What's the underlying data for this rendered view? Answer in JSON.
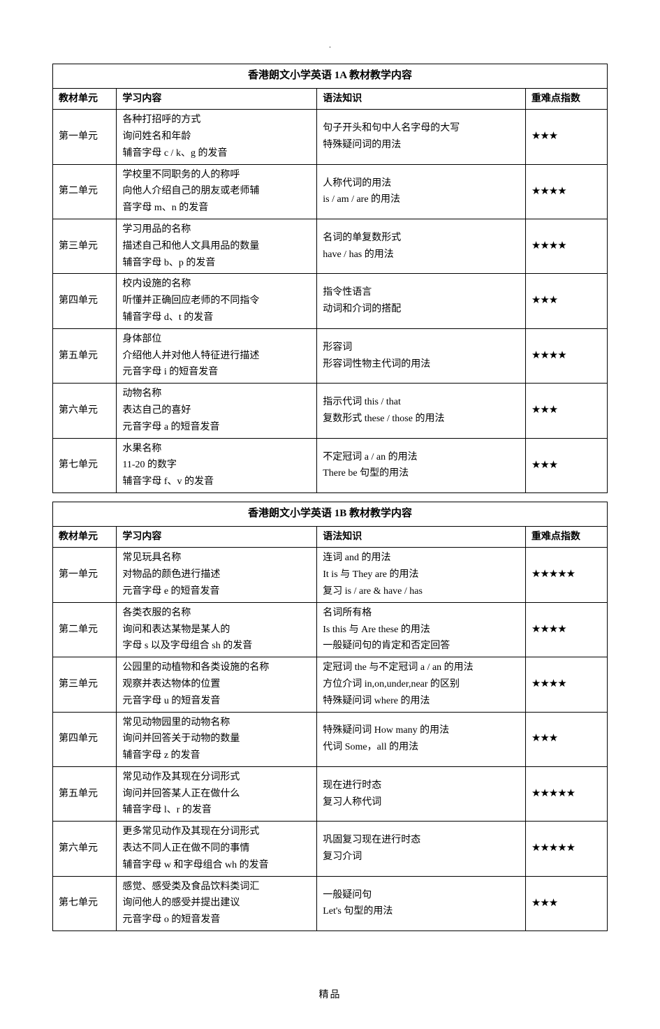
{
  "dot": ".",
  "footer": "精品",
  "tables": [
    {
      "title": "香港朗文小学英语 1A 教材教学内容",
      "headers": [
        "教材单元",
        "学习内容",
        "语法知识",
        "重难点指数"
      ],
      "rows": [
        {
          "unit": "第一单元",
          "content": [
            "各种打招呼的方式",
            "询问姓名和年龄",
            "辅音字母 c / k、g 的发音"
          ],
          "grammar": [
            "句子开头和句中人名字母的大写",
            "特殊疑问词的用法"
          ],
          "diff": "★★★"
        },
        {
          "unit": "第二单元",
          "content": [
            "学校里不同职务的人的称呼",
            "向他人介绍自己的朋友或老师辅",
            "音字母 m、n 的发音"
          ],
          "grammar": [
            "人称代词的用法",
            "is / am / are 的用法"
          ],
          "diff": "★★★★"
        },
        {
          "unit": "第三单元",
          "content": [
            "学习用品的名称",
            "描述自己和他人文具用品的数量",
            "辅音字母 b、p 的发音"
          ],
          "grammar": [
            "名词的单复数形式",
            "have / has 的用法"
          ],
          "diff": "★★★★"
        },
        {
          "unit": "第四单元",
          "content": [
            "校内设施的名称",
            "听懂并正确回应老师的不同指令",
            "辅音字母 d、t 的发音"
          ],
          "grammar": [
            "指令性语言",
            "动词和介词的搭配"
          ],
          "diff": "★★★"
        },
        {
          "unit": "第五单元",
          "content": [
            "身体部位",
            "介绍他人并对他人特征进行描述",
            "元音字母 i 的短音发音"
          ],
          "grammar": [
            "形容词",
            "形容词性物主代词的用法"
          ],
          "diff": "★★★★"
        },
        {
          "unit": "第六单元",
          "content": [
            "动物名称",
            "表达自己的喜好",
            "元音字母 a 的短音发音"
          ],
          "grammar": [
            "指示代词 this / that",
            "复数形式 these / those 的用法"
          ],
          "diff": "★★★"
        },
        {
          "unit": "第七单元",
          "content": [
            "水果名称",
            "11-20 的数字",
            "辅音字母 f、v 的发音"
          ],
          "grammar": [
            "不定冠词 a / an 的用法",
            "There be 句型的用法"
          ],
          "diff": "★★★"
        }
      ]
    },
    {
      "title": "香港朗文小学英语 1B 教材教学内容",
      "headers": [
        "教材单元",
        "学习内容",
        "语法知识",
        "重难点指数"
      ],
      "rows": [
        {
          "unit": "第一单元",
          "content": [
            "常见玩具名称",
            "对物品的颜色进行描述",
            "元音字母 e 的短音发音"
          ],
          "grammar": [
            "连词 and 的用法",
            "It is 与 They are 的用法",
            "复习 is / are & have / has"
          ],
          "diff": "★★★★★"
        },
        {
          "unit": "第二单元",
          "content": [
            "各类衣服的名称",
            "询问和表达某物是某人的",
            "字母 s 以及字母组合 sh 的发音"
          ],
          "grammar": [
            "名词所有格",
            "Is this 与 Are these 的用法",
            "一般疑问句的肯定和否定回答"
          ],
          "diff": "★★★★"
        },
        {
          "unit": "第三单元",
          "content": [
            "公园里的动植物和各类设施的名称",
            "观察并表达物体的位置",
            "元音字母 u 的短音发音"
          ],
          "grammar": [
            "定冠词 the 与不定冠词 a / an 的用法",
            "方位介词 in,on,under,near 的区别",
            "特殊疑问词 where 的用法"
          ],
          "diff": "★★★★"
        },
        {
          "unit": "第四单元",
          "content": [
            "常见动物园里的动物名称",
            "询问并回答关于动物的数量",
            "辅音字母 z 的发音"
          ],
          "grammar": [
            "特殊疑问词 How many 的用法",
            "代词 Some，all 的用法"
          ],
          "diff": "★★★"
        },
        {
          "unit": "第五单元",
          "content": [
            "常见动作及其现在分词形式",
            "询问并回答某人正在做什么",
            "辅音字母 l、r 的发音"
          ],
          "grammar": [
            "现在进行时态",
            "复习人称代词"
          ],
          "diff": "★★★★★"
        },
        {
          "unit": "第六单元",
          "content": [
            "更多常见动作及其现在分词形式",
            "表达不同人正在做不同的事情",
            "辅音字母 w 和字母组合 wh 的发音"
          ],
          "grammar": [
            "巩固复习现在进行时态",
            "复习介词"
          ],
          "diff": "★★★★★"
        },
        {
          "unit": "第七单元",
          "content": [
            "感觉、感受类及食品饮料类词汇",
            "询问他人的感受并提出建议",
            "元音字母 o 的短音发音"
          ],
          "grammar": [
            "一般疑问句",
            "Let's 句型的用法"
          ],
          "diff": "★★★"
        }
      ]
    }
  ]
}
